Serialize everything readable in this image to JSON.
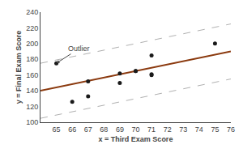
{
  "chart_data": {
    "type": "scatter",
    "xlabel": "x = Third Exam Score",
    "ylabel": "y = Final Exam Score",
    "series": [
      {
        "type": "scatter",
        "color": "#1a1a1a",
        "marker": "circle",
        "x": [
          65,
          66,
          67,
          67,
          69,
          69,
          70,
          70,
          71,
          71,
          71,
          75
        ],
        "values": [
          175,
          126,
          133,
          152,
          150,
          162,
          165,
          165,
          185,
          160,
          161,
          200
        ]
      },
      {
        "type": "line",
        "color": "#8B3A0F",
        "line_style": "solid",
        "x": [
          64,
          76
        ],
        "values": [
          140,
          190
        ]
      },
      {
        "type": "line",
        "color": "#b0b0b0",
        "line_style": "dashed",
        "x": [
          64,
          76
        ],
        "values": [
          175,
          225
        ]
      },
      {
        "type": "line",
        "color": "#b0b0b0",
        "line_style": "dashed",
        "x": [
          64,
          76
        ],
        "values": [
          105,
          155
        ]
      }
    ],
    "annotations": [
      {
        "text": "Outlier",
        "x": 65,
        "y": 175
      }
    ],
    "xlim": [
      64,
      76
    ],
    "ylim": [
      100,
      240
    ],
    "xticks": [
      65,
      66,
      67,
      68,
      69,
      70,
      71,
      72,
      73,
      74,
      75,
      76
    ],
    "yticks": [
      100,
      120,
      140,
      160,
      180,
      200,
      220,
      240
    ],
    "grid": false
  }
}
